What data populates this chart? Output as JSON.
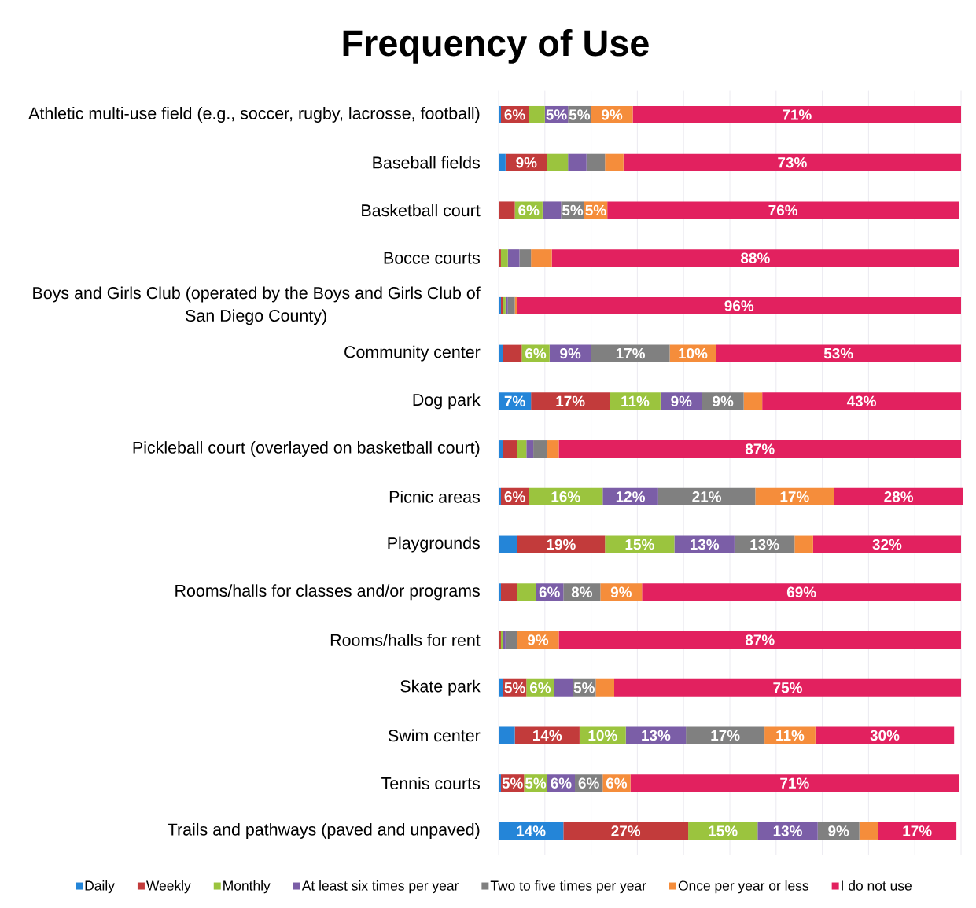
{
  "chart_data": {
    "type": "bar",
    "orientation": "horizontal",
    "stacked": true,
    "title": "Frequency of Use",
    "categories": [
      "Athletic multi-use field (e.g., soccer, rugby, lacrosse, football)",
      "Baseball fields",
      "Basketball court",
      "Bocce courts",
      "Boys and Girls Club (operated by the Boys and Girls Club of San Diego County)",
      "Community center",
      "Dog park",
      "Pickleball court (overlayed on basketball court)",
      "Picnic areas",
      "Playgrounds",
      "Rooms/halls for classes and/or programs",
      "Rooms/halls for rent",
      "Skate park",
      "Swim center",
      "Tennis courts",
      "Trails and pathways (paved and unpaved)"
    ],
    "series": [
      {
        "name": "Daily",
        "color": "#2485d8",
        "values": [
          0.5,
          1.5,
          0,
          0,
          0.5,
          1,
          7,
          1,
          0.5,
          4,
          0.5,
          0,
          1,
          3.5,
          0.5,
          14
        ],
        "value_labels": [
          null,
          null,
          null,
          null,
          null,
          null,
          "7%",
          null,
          null,
          null,
          null,
          null,
          null,
          null,
          null,
          "14%"
        ]
      },
      {
        "name": "Weekly",
        "color": "#c23b3b",
        "values": [
          6,
          9,
          3.5,
          0.5,
          0.5,
          4,
          17,
          3,
          6,
          19,
          3.5,
          0.5,
          5,
          14,
          5,
          27
        ],
        "value_labels": [
          "6%",
          "9%",
          null,
          null,
          null,
          null,
          "17%",
          null,
          "6%",
          "19%",
          null,
          null,
          "5%",
          "14%",
          "5%",
          "27%"
        ]
      },
      {
        "name": "Monthly",
        "color": "#9bc43e",
        "values": [
          3.5,
          4.5,
          6,
          1.5,
          0.5,
          6,
          11,
          2,
          16,
          15,
          4,
          0.5,
          6,
          10,
          5,
          15
        ],
        "value_labels": [
          null,
          null,
          "6%",
          null,
          null,
          "6%",
          "11%",
          null,
          "16%",
          "15%",
          null,
          null,
          "6%",
          "10%",
          "5%",
          "15%"
        ]
      },
      {
        "name": "At least six times per year",
        "color": "#7b5ea7",
        "values": [
          5,
          4,
          4,
          2.5,
          0.5,
          9,
          9,
          1.5,
          12,
          13,
          6,
          0.5,
          4,
          13,
          6,
          13
        ],
        "value_labels": [
          "5%",
          null,
          null,
          null,
          null,
          "9%",
          "9%",
          null,
          "12%",
          "13%",
          "6%",
          null,
          null,
          "13%",
          "6%",
          "13%"
        ]
      },
      {
        "name": "Two to five times per year",
        "color": "#808080",
        "values": [
          5,
          4,
          5,
          2.5,
          1.5,
          17,
          9,
          3,
          21,
          13,
          8,
          2.5,
          5,
          17,
          6,
          9
        ],
        "value_labels": [
          "5%",
          null,
          "5%",
          null,
          null,
          "17%",
          "9%",
          null,
          "21%",
          "13%",
          "8%",
          null,
          "5%",
          "17%",
          "6%",
          "9%"
        ]
      },
      {
        "name": "Once per year or less",
        "color": "#f58d3b",
        "values": [
          9,
          4,
          5,
          4.5,
          0.5,
          10,
          4,
          2.5,
          17,
          4,
          9,
          9,
          4,
          11,
          6,
          4
        ],
        "value_labels": [
          "9%",
          null,
          "5%",
          null,
          null,
          "10%",
          null,
          null,
          "17%",
          null,
          "9%",
          "9%",
          null,
          "11%",
          "6%",
          null
        ]
      },
      {
        "name": "I do not use",
        "color": "#e2215f",
        "values": [
          71,
          73,
          76,
          88,
          96,
          53,
          43,
          87,
          28,
          32,
          69,
          87,
          75,
          30,
          71,
          17
        ],
        "value_labels": [
          "71%",
          "73%",
          "76%",
          "88%",
          "96%",
          "53%",
          "43%",
          "87%",
          "28%",
          "32%",
          "69%",
          "87%",
          "75%",
          "30%",
          "71%",
          "17%"
        ]
      }
    ],
    "xlim": [
      0,
      100.5
    ],
    "xticks": [
      {
        "value": 0,
        "label": null
      },
      {
        "value": 10,
        "label": null
      },
      {
        "value": 20,
        "label": null
      },
      {
        "value": 30,
        "label": null
      },
      {
        "value": 40,
        "label": null
      },
      {
        "value": 50,
        "label": null
      },
      {
        "value": 60,
        "label": null
      },
      {
        "value": 70,
        "label": null
      },
      {
        "value": 80,
        "label": null
      },
      {
        "value": 90,
        "label": null
      },
      {
        "value": 100,
        "label": null
      }
    ],
    "tick_labels": "y",
    "grid": "x",
    "legend": "bottom"
  }
}
